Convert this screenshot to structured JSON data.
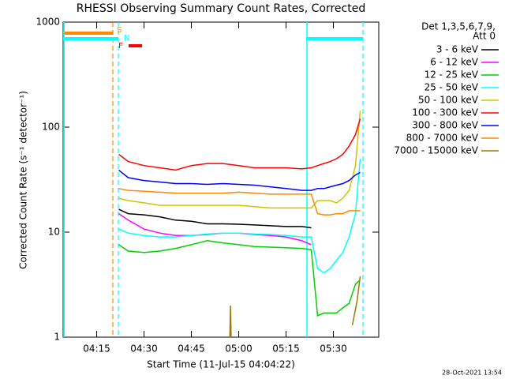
{
  "chart_data": {
    "type": "line",
    "title": "RHESSI Observing Summary Count Rates, Corrected",
    "x_label": "Start Time (11-Jul-15 04:04:22)",
    "y_label": "Corrected Count Rate (s⁻¹ detector⁻¹)",
    "legend_header": [
      "Det 1,3,5,6,7,9,",
      "Att 0"
    ],
    "footer": "28-Oct-2021 13:54",
    "log_y": true,
    "xlim": [
      244.37,
      344.37
    ],
    "ylim": [
      1,
      1000
    ],
    "xticks": [
      {
        "value": 255,
        "label": "04:15"
      },
      {
        "value": 270,
        "label": "04:30"
      },
      {
        "value": 285,
        "label": "04:45"
      },
      {
        "value": 300,
        "label": "05:00"
      },
      {
        "value": 315,
        "label": "05:15"
      },
      {
        "value": 330,
        "label": "05:30"
      }
    ],
    "yticks": [
      1,
      10,
      100,
      1000
    ],
    "x": [
      262,
      265,
      270,
      275,
      280,
      285,
      290,
      295,
      300,
      305,
      310,
      315,
      320,
      323,
      325,
      327,
      329,
      331,
      333,
      335,
      337,
      338.5
    ],
    "series": [
      {
        "name": "3 - 6 keV",
        "color": "#000000",
        "values": [
          16.5,
          15,
          14.6,
          14,
          13,
          12.7,
          12,
          12,
          11.9,
          11.7,
          11.5,
          11.3,
          11.3,
          11,
          null,
          null,
          null,
          null,
          null,
          null,
          null,
          null
        ]
      },
      {
        "name": "6 - 12 keV",
        "color": "#ff00ff",
        "values": [
          15,
          13,
          10.7,
          9.8,
          9.3,
          9.3,
          9.5,
          9.8,
          9.8,
          9.5,
          9.3,
          9,
          8.3,
          7.6,
          null,
          null,
          null,
          null,
          null,
          null,
          null,
          null
        ]
      },
      {
        "name": "12 - 25 keV",
        "color": "#00d000",
        "values": [
          7.6,
          6.6,
          6.4,
          6.6,
          7,
          7.6,
          8.3,
          7.9,
          7.6,
          7.3,
          7.2,
          7.1,
          7,
          6.8,
          1.6,
          1.7,
          1.7,
          1.7,
          1.9,
          2.1,
          3.2,
          3.5
        ]
      },
      {
        "name": "25 - 50 keV",
        "color": "#00ffff",
        "values": [
          10.7,
          9.8,
          9.3,
          9,
          9,
          9.3,
          9.6,
          9.8,
          9.8,
          9.6,
          9.5,
          9.3,
          9,
          9,
          4.5,
          4.1,
          4.5,
          5.4,
          6.4,
          9,
          15,
          50
        ]
      },
      {
        "name": "50 - 100 keV",
        "color": "#c8c800",
        "values": [
          21,
          20,
          19,
          18,
          18,
          18,
          18,
          18,
          18,
          17.5,
          17,
          17,
          17,
          17,
          20,
          20,
          20,
          19,
          21,
          25,
          43,
          143
        ]
      },
      {
        "name": "100 - 300 keV",
        "color": "#ff0000",
        "values": [
          55,
          47,
          43,
          41,
          39,
          43,
          45,
          45,
          43,
          41,
          41,
          41,
          40,
          41,
          43,
          45,
          47,
          50,
          55,
          66,
          85,
          120
        ]
      },
      {
        "name": "300 - 800 keV",
        "color": "#0000ff",
        "values": [
          39,
          33,
          31,
          30,
          29,
          29,
          28.5,
          29,
          28.5,
          28,
          27,
          26,
          25,
          25,
          26,
          26,
          27,
          28,
          29,
          31,
          35,
          37
        ]
      },
      {
        "name": "800 - 7000 keV",
        "color": "#ff8800",
        "values": [
          26,
          25,
          24.5,
          24,
          23.5,
          23.5,
          23.5,
          23.5,
          24,
          23.5,
          23,
          23,
          23,
          23,
          15,
          14.6,
          14.6,
          15,
          15,
          16,
          16,
          16
        ]
      },
      {
        "name": "7000 - 15000 keV",
        "color": "#9a7a00",
        "x": [
          297.2,
          297.4,
          297.6,
          310,
          336,
          337.5,
          338.5
        ],
        "values": [
          1,
          2,
          1,
          null,
          1.3,
          2.2,
          3.8
        ]
      }
    ],
    "flags": [
      {
        "label": "S",
        "color": "#ff8800",
        "vertical_lines": true,
        "intervals": [
          [
            244.37,
            260.12
          ]
        ]
      },
      {
        "label": "N",
        "color": "#00ffff",
        "vertical_lines": true,
        "intervals": [
          [
            244.37,
            261.87
          ],
          [
            321.37,
            339.37
          ]
        ]
      },
      {
        "label": "F",
        "color": "#ff0000",
        "vertical_lines": false,
        "intervals": [
          [
            265.1,
            269.4
          ]
        ]
      }
    ]
  }
}
